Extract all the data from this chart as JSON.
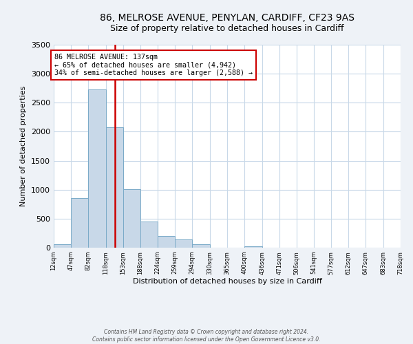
{
  "title": "86, MELROSE AVENUE, PENYLAN, CARDIFF, CF23 9AS",
  "subtitle": "Size of property relative to detached houses in Cardiff",
  "xlabel": "Distribution of detached houses by size in Cardiff",
  "ylabel": "Number of detached properties",
  "bar_edges": [
    12,
    47,
    82,
    118,
    153,
    188,
    224,
    259,
    294,
    330,
    365,
    400,
    436,
    471,
    506,
    541,
    577,
    612,
    647,
    683,
    718
  ],
  "bar_heights": [
    55,
    850,
    2730,
    2080,
    1010,
    450,
    205,
    145,
    55,
    0,
    0,
    25,
    0,
    0,
    0,
    0,
    0,
    0,
    0,
    0
  ],
  "bar_color": "#c8d8e8",
  "bar_edge_color": "#7aaac8",
  "property_size": 137,
  "vline_color": "#cc0000",
  "annotation_line1": "86 MELROSE AVENUE: 137sqm",
  "annotation_line2": "← 65% of detached houses are smaller (4,942)",
  "annotation_line3": "34% of semi-detached houses are larger (2,588) →",
  "annotation_box_color": "#ffffff",
  "annotation_box_edge_color": "#cc0000",
  "ylim": [
    0,
    3500
  ],
  "yticks": [
    0,
    500,
    1000,
    1500,
    2000,
    2500,
    3000,
    3500
  ],
  "tick_labels": [
    "12sqm",
    "47sqm",
    "82sqm",
    "118sqm",
    "153sqm",
    "188sqm",
    "224sqm",
    "259sqm",
    "294sqm",
    "330sqm",
    "365sqm",
    "400sqm",
    "436sqm",
    "471sqm",
    "506sqm",
    "541sqm",
    "577sqm",
    "612sqm",
    "647sqm",
    "683sqm",
    "718sqm"
  ],
  "footer_line1": "Contains HM Land Registry data © Crown copyright and database right 2024.",
  "footer_line2": "Contains public sector information licensed under the Open Government Licence v3.0.",
  "background_color": "#eef2f7",
  "plot_background_color": "#ffffff",
  "grid_color": "#c8d8e8",
  "title_fontsize": 10,
  "subtitle_fontsize": 9,
  "axis_label_fontsize": 8,
  "tick_fontsize": 6,
  "ylabel_fontsize": 8
}
